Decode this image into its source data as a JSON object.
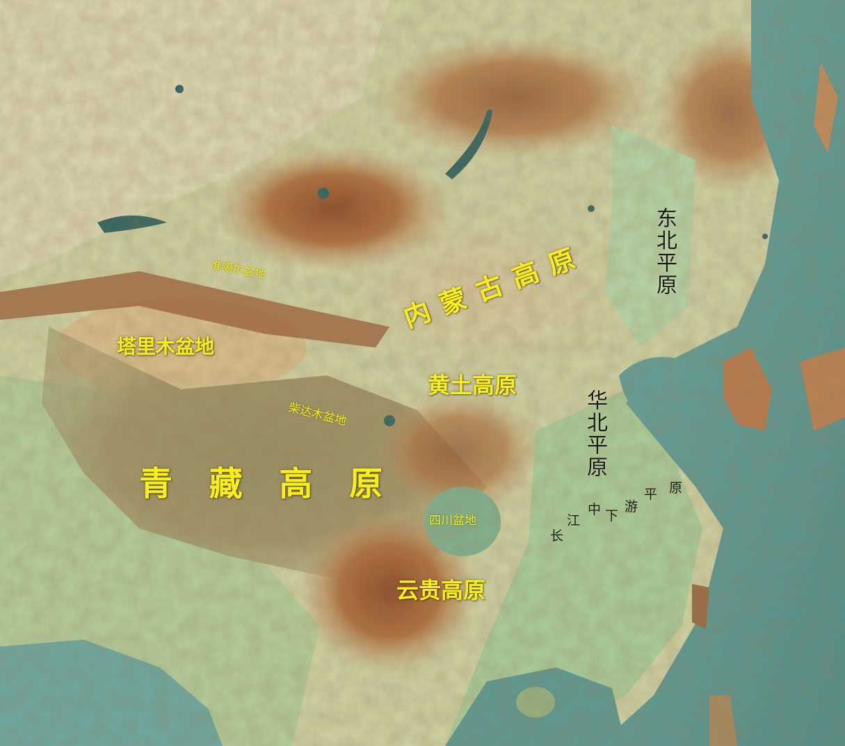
{
  "map": {
    "labels": {
      "tarim_basin": "塔里木盆地",
      "junggar_basin": "准噶尔盆地",
      "qaidam_basin": "柴达木盆地",
      "tibetan_plateau": "青 藏 高 原",
      "inner_mongolia_plateau": "内 蒙 古 高 原",
      "loess_plateau": "黄土高原",
      "sichuan_basin": "四川盆地",
      "yungui_plateau": "云贵高原",
      "northeast_plain": "东北平原",
      "north_china_plain": "华北平原",
      "yangtze_plain": [
        "长",
        "江",
        "中",
        "下",
        "游",
        "平",
        "原"
      ]
    },
    "colors": {
      "plateau_label": "#f7ee1c",
      "plain_label": "#1e1e16",
      "sea": "#5f9f99",
      "lowland": "#9cc79a",
      "highland": "#a25a32"
    }
  }
}
